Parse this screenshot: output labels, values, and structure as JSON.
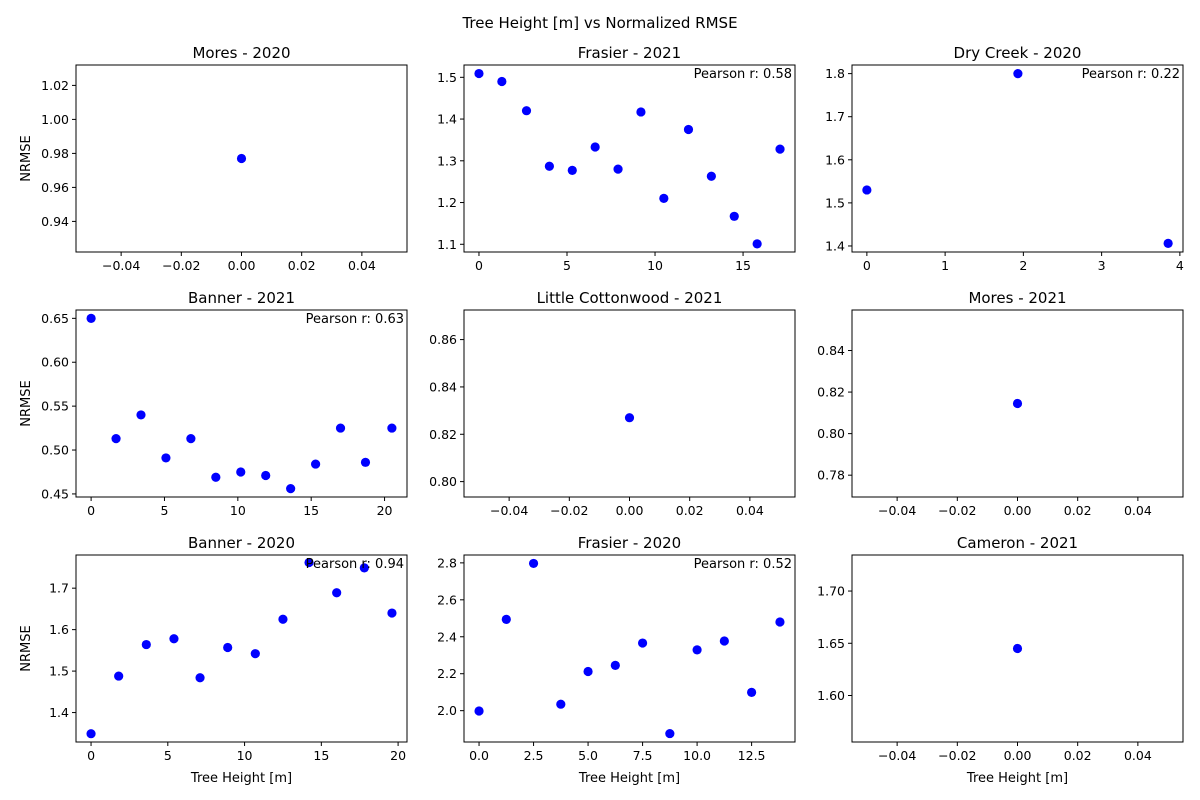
{
  "figure": {
    "suptitle": "Tree Height [m] vs Normalized RMSE"
  },
  "colors": {
    "marker": "#0000ff",
    "axes": "#000000"
  },
  "chart_data": [
    {
      "type": "scatter",
      "title": "Mores - 2020",
      "xlabel": "",
      "ylabel": "NRMSE",
      "xlim": [
        -0.055,
        0.055
      ],
      "ylim": [
        0.922,
        1.032
      ],
      "xticks": [
        -0.04,
        -0.02,
        0.0,
        0.02,
        0.04
      ],
      "xtick_labels": [
        "−0.04",
        "−0.02",
        "0.00",
        "0.02",
        "0.04"
      ],
      "yticks": [
        0.94,
        0.96,
        0.98,
        1.0,
        1.02
      ],
      "ytick_labels": [
        "0.94",
        "0.96",
        "0.98",
        "1.00",
        "1.02"
      ],
      "annotation": "",
      "points": [
        [
          0.0,
          0.977
        ]
      ]
    },
    {
      "type": "scatter",
      "title": "Frasier - 2021",
      "xlabel": "",
      "ylabel": "",
      "xlim": [
        -0.85,
        17.95
      ],
      "ylim": [
        1.0815,
        1.5295
      ],
      "xticks": [
        0,
        5,
        10,
        15
      ],
      "xtick_labels": [
        "0",
        "5",
        "10",
        "15"
      ],
      "yticks": [
        1.1,
        1.2,
        1.3,
        1.4,
        1.5
      ],
      "ytick_labels": [
        "1.1",
        "1.2",
        "1.3",
        "1.4",
        "1.5"
      ],
      "annotation": "Pearson r: 0.58",
      "points": [
        [
          0.0,
          1.509
        ],
        [
          1.3,
          1.49
        ],
        [
          2.7,
          1.42
        ],
        [
          4.0,
          1.287
        ],
        [
          5.3,
          1.277
        ],
        [
          6.6,
          1.333
        ],
        [
          7.9,
          1.28
        ],
        [
          9.2,
          1.417
        ],
        [
          10.5,
          1.21
        ],
        [
          11.9,
          1.375
        ],
        [
          13.2,
          1.263
        ],
        [
          14.5,
          1.167
        ],
        [
          15.8,
          1.101
        ],
        [
          17.1,
          1.328
        ]
      ]
    },
    {
      "type": "scatter",
      "title": "Dry Creek - 2020",
      "xlabel": "",
      "ylabel": "",
      "xlim": [
        -0.19,
        4.04
      ],
      "ylim": [
        1.386,
        1.82
      ],
      "xticks": [
        0,
        1,
        2,
        3,
        4
      ],
      "xtick_labels": [
        "0",
        "1",
        "2",
        "3",
        "4"
      ],
      "yticks": [
        1.4,
        1.5,
        1.6,
        1.7,
        1.8
      ],
      "ytick_labels": [
        "1.4",
        "1.5",
        "1.6",
        "1.7",
        "1.8"
      ],
      "annotation": "Pearson r: 0.22",
      "points": [
        [
          0.0,
          1.53
        ],
        [
          1.93,
          1.8
        ],
        [
          3.85,
          1.406
        ]
      ]
    },
    {
      "type": "scatter",
      "title": "Banner - 2021",
      "xlabel": "",
      "ylabel": "NRMSE",
      "xlim": [
        -1.03,
        21.53
      ],
      "ylim": [
        0.4465,
        0.6595
      ],
      "xticks": [
        0,
        5,
        10,
        15,
        20
      ],
      "xtick_labels": [
        "0",
        "5",
        "10",
        "15",
        "20"
      ],
      "yticks": [
        0.45,
        0.5,
        0.55,
        0.6,
        0.65
      ],
      "ytick_labels": [
        "0.45",
        "0.50",
        "0.55",
        "0.60",
        "0.65"
      ],
      "annotation": "Pearson r: 0.63",
      "points": [
        [
          0.0,
          0.65
        ],
        [
          1.7,
          0.513
        ],
        [
          3.4,
          0.54
        ],
        [
          5.1,
          0.491
        ],
        [
          6.8,
          0.513
        ],
        [
          8.5,
          0.469
        ],
        [
          10.2,
          0.475
        ],
        [
          11.9,
          0.471
        ],
        [
          13.6,
          0.456
        ],
        [
          15.3,
          0.484
        ],
        [
          17.0,
          0.525
        ],
        [
          18.7,
          0.486
        ],
        [
          20.5,
          0.525
        ]
      ]
    },
    {
      "type": "scatter",
      "title": "Little Cottonwood - 2021",
      "xlabel": "",
      "ylabel": "",
      "xlim": [
        -0.055,
        0.055
      ],
      "ylim": [
        0.7935,
        0.8725
      ],
      "xticks": [
        -0.04,
        -0.02,
        0.0,
        0.02,
        0.04
      ],
      "xtick_labels": [
        "−0.04",
        "−0.02",
        "0.00",
        "0.02",
        "0.04"
      ],
      "yticks": [
        0.8,
        0.82,
        0.84,
        0.86
      ],
      "ytick_labels": [
        "0.80",
        "0.82",
        "0.84",
        "0.86"
      ],
      "annotation": "",
      "points": [
        [
          0.0,
          0.827
        ]
      ]
    },
    {
      "type": "scatter",
      "title": "Mores - 2021",
      "xlabel": "",
      "ylabel": "",
      "xlim": [
        -0.055,
        0.055
      ],
      "ylim": [
        0.7695,
        0.8595
      ],
      "xticks": [
        -0.04,
        -0.02,
        0.0,
        0.02,
        0.04
      ],
      "xtick_labels": [
        "−0.04",
        "−0.02",
        "0.00",
        "0.02",
        "0.04"
      ],
      "yticks": [
        0.78,
        0.8,
        0.82,
        0.84
      ],
      "ytick_labels": [
        "0.78",
        "0.80",
        "0.82",
        "0.84"
      ],
      "annotation": "",
      "points": [
        [
          0.0,
          0.8145
        ]
      ]
    },
    {
      "type": "scatter",
      "title": "Banner - 2020",
      "xlabel": "Tree Height [m]",
      "ylabel": "NRMSE",
      "xlim": [
        -0.98,
        20.58
      ],
      "ylim": [
        1.329,
        1.78
      ],
      "xticks": [
        0,
        5,
        10,
        15,
        20
      ],
      "xtick_labels": [
        "0",
        "5",
        "10",
        "15",
        "20"
      ],
      "yticks": [
        1.4,
        1.5,
        1.6,
        1.7
      ],
      "ytick_labels": [
        "1.4",
        "1.5",
        "1.6",
        "1.7"
      ],
      "annotation": "Pearson r: 0.94",
      "points": [
        [
          0.0,
          1.349
        ],
        [
          1.8,
          1.488
        ],
        [
          3.6,
          1.564
        ],
        [
          5.4,
          1.578
        ],
        [
          7.1,
          1.484
        ],
        [
          8.9,
          1.557
        ],
        [
          10.7,
          1.542
        ],
        [
          12.5,
          1.625
        ],
        [
          14.2,
          1.762
        ],
        [
          16.0,
          1.689
        ],
        [
          17.8,
          1.749
        ],
        [
          19.6,
          1.64
        ]
      ]
    },
    {
      "type": "scatter",
      "title": "Frasier - 2020",
      "xlabel": "Tree Height [m]",
      "ylabel": "",
      "xlim": [
        -0.69,
        14.49
      ],
      "ylim": [
        1.8304,
        2.8426
      ],
      "xticks": [
        0.0,
        2.5,
        5.0,
        7.5,
        10.0,
        12.5
      ],
      "xtick_labels": [
        "0.0",
        "2.5",
        "5.0",
        "7.5",
        "10.0",
        "12.5"
      ],
      "yticks": [
        2.0,
        2.2,
        2.4,
        2.6,
        2.8
      ],
      "ytick_labels": [
        "2.0",
        "2.2",
        "2.4",
        "2.6",
        "2.8"
      ],
      "annotation": "Pearson r: 0.52",
      "points": [
        [
          0.0,
          1.998
        ],
        [
          1.25,
          2.494
        ],
        [
          2.5,
          2.797
        ],
        [
          3.75,
          2.035
        ],
        [
          5.0,
          2.212
        ],
        [
          6.25,
          2.245
        ],
        [
          7.5,
          2.366
        ],
        [
          8.75,
          1.876
        ],
        [
          10.0,
          2.329
        ],
        [
          11.25,
          2.377
        ],
        [
          12.5,
          2.099
        ],
        [
          13.8,
          2.48
        ]
      ]
    },
    {
      "type": "scatter",
      "title": "Cameron - 2021",
      "xlabel": "Tree Height [m]",
      "ylabel": "",
      "xlim": [
        -0.055,
        0.055
      ],
      "ylim": [
        1.5555,
        1.7345
      ],
      "xticks": [
        -0.04,
        -0.02,
        0.0,
        0.02,
        0.04
      ],
      "xtick_labels": [
        "−0.04",
        "−0.02",
        "0.00",
        "0.02",
        "0.04"
      ],
      "yticks": [
        1.6,
        1.65,
        1.7
      ],
      "ytick_labels": [
        "1.60",
        "1.65",
        "1.70"
      ],
      "annotation": "",
      "points": [
        [
          0.0,
          1.645
        ]
      ]
    }
  ]
}
